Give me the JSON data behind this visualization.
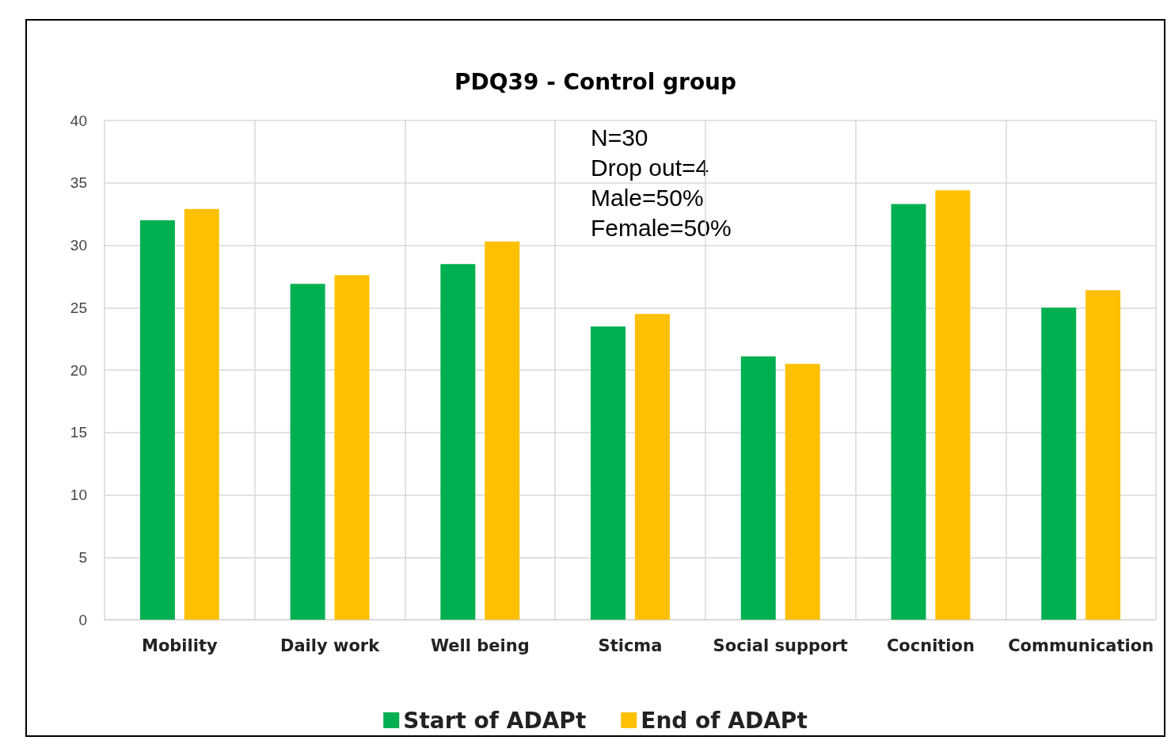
{
  "chart_data": {
    "type": "bar",
    "title": "PDQ39 - Control group",
    "categories": [
      "Mobility",
      "Daily work",
      "Well being",
      "Sticma",
      "Social support",
      "Cocnition",
      "Communication"
    ],
    "series": [
      {
        "name": "Start of ADAPt",
        "color": "#00b050",
        "values": [
          32,
          26.9,
          28.5,
          23.5,
          21.1,
          33.3,
          25.0
        ]
      },
      {
        "name": "End of ADAPt",
        "color": "#ffc000",
        "values": [
          32.9,
          27.6,
          30.3,
          24.5,
          20.5,
          34.4,
          26.4
        ]
      }
    ],
    "ylim": [
      0,
      40
    ],
    "yticks": [
      0,
      5,
      10,
      15,
      20,
      25,
      30,
      35,
      40
    ],
    "grid": true,
    "legend": "bottom",
    "annotations": [
      "N=30\nDrop out=4\nMale=50%\nFemale=50%"
    ]
  }
}
